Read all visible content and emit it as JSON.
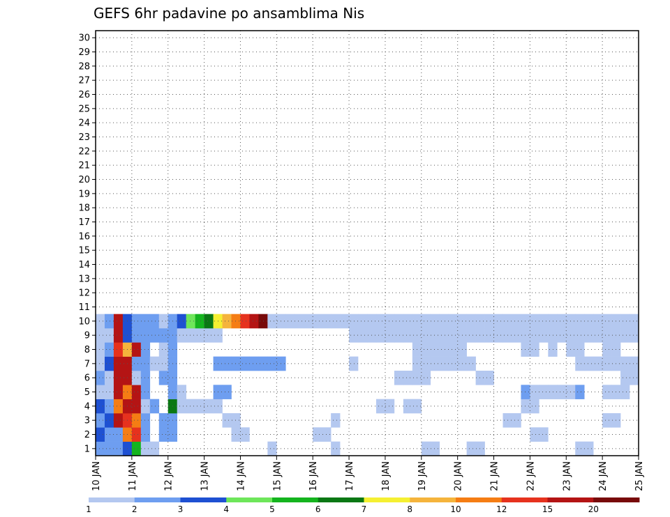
{
  "chart_data": {
    "type": "heatmap",
    "title": "GEFS 6hr padavine po ansamblima Nis",
    "xlabel": "",
    "ylabel": "",
    "x_unit": "6hr step",
    "x_ticks": [
      "10 JAN",
      "11 JAN",
      "12 JAN",
      "13 JAN",
      "14 JAN",
      "15 JAN",
      "16 JAN",
      "17 JAN",
      "18 JAN",
      "19 JAN",
      "20 JAN",
      "21 JAN",
      "22 JAN",
      "23 JAN",
      "24 JAN",
      "25 JAN"
    ],
    "y_ticks": [
      "1",
      "2",
      "3",
      "4",
      "5",
      "6",
      "7",
      "8",
      "9",
      "10",
      "11",
      "12",
      "13",
      "14",
      "15",
      "16",
      "17",
      "18",
      "19",
      "20",
      "21",
      "22",
      "23",
      "24",
      "25",
      "26",
      "27",
      "28",
      "29",
      "30"
    ],
    "grid": true,
    "colorbar": {
      "levels": [
        "1",
        "2",
        "3",
        "4",
        "5",
        "6",
        "7",
        "8",
        "10",
        "12",
        "15",
        "20"
      ],
      "colors": [
        "#b4c8f0",
        "#6e9ef0",
        "#1e50d2",
        "#6ee65a",
        "#14b41e",
        "#0a7814",
        "#f5f032",
        "#f5b43c",
        "#f57d14",
        "#e6321e",
        "#b41414",
        "#780a0a"
      ]
    },
    "cells": [
      [
        0,
        0,
        2
      ],
      [
        1,
        0,
        2
      ],
      [
        2,
        0,
        2
      ],
      [
        3,
        0,
        3
      ],
      [
        4,
        0,
        5
      ],
      [
        5,
        0,
        1
      ],
      [
        6,
        0,
        1
      ],
      [
        19,
        0,
        1
      ],
      [
        26,
        0,
        1
      ],
      [
        36,
        0,
        1
      ],
      [
        37,
        0,
        1
      ],
      [
        41,
        0,
        1
      ],
      [
        42,
        0,
        1
      ],
      [
        53,
        0,
        1
      ],
      [
        54,
        0,
        1
      ],
      [
        0,
        1,
        3
      ],
      [
        1,
        1,
        2
      ],
      [
        2,
        1,
        2
      ],
      [
        3,
        1,
        9
      ],
      [
        4,
        1,
        10
      ],
      [
        5,
        1,
        2
      ],
      [
        7,
        1,
        2
      ],
      [
        8,
        1,
        2
      ],
      [
        15,
        1,
        1
      ],
      [
        16,
        1,
        1
      ],
      [
        24,
        1,
        1
      ],
      [
        25,
        1,
        1
      ],
      [
        48,
        1,
        1
      ],
      [
        49,
        1,
        1
      ],
      [
        0,
        2,
        2
      ],
      [
        1,
        2,
        3
      ],
      [
        2,
        2,
        11
      ],
      [
        3,
        2,
        10
      ],
      [
        4,
        2,
        9
      ],
      [
        5,
        2,
        2
      ],
      [
        7,
        2,
        2
      ],
      [
        8,
        2,
        2
      ],
      [
        14,
        2,
        1
      ],
      [
        15,
        2,
        1
      ],
      [
        26,
        2,
        1
      ],
      [
        45,
        2,
        1
      ],
      [
        46,
        2,
        1
      ],
      [
        56,
        2,
        1
      ],
      [
        57,
        2,
        1
      ],
      [
        0,
        3,
        3
      ],
      [
        1,
        3,
        2
      ],
      [
        2,
        3,
        9
      ],
      [
        3,
        3,
        11
      ],
      [
        4,
        3,
        11
      ],
      [
        5,
        3,
        1
      ],
      [
        6,
        3,
        2
      ],
      [
        8,
        3,
        6
      ],
      [
        9,
        3,
        1
      ],
      [
        10,
        3,
        1
      ],
      [
        11,
        3,
        1
      ],
      [
        12,
        3,
        1
      ],
      [
        13,
        3,
        1
      ],
      [
        31,
        3,
        1
      ],
      [
        32,
        3,
        1
      ],
      [
        34,
        3,
        1
      ],
      [
        35,
        3,
        1
      ],
      [
        47,
        3,
        1
      ],
      [
        48,
        3,
        1
      ],
      [
        0,
        4,
        1
      ],
      [
        1,
        4,
        1
      ],
      [
        2,
        4,
        11
      ],
      [
        3,
        4,
        9
      ],
      [
        4,
        4,
        11
      ],
      [
        5,
        4,
        2
      ],
      [
        8,
        4,
        2
      ],
      [
        9,
        4,
        1
      ],
      [
        13,
        4,
        2
      ],
      [
        14,
        4,
        2
      ],
      [
        47,
        4,
        2
      ],
      [
        48,
        4,
        1
      ],
      [
        49,
        4,
        1
      ],
      [
        50,
        4,
        1
      ],
      [
        51,
        4,
        1
      ],
      [
        52,
        4,
        1
      ],
      [
        53,
        4,
        2
      ],
      [
        56,
        4,
        1
      ],
      [
        57,
        4,
        1
      ],
      [
        58,
        4,
        1
      ],
      [
        0,
        5,
        2
      ],
      [
        1,
        5,
        1
      ],
      [
        2,
        5,
        11
      ],
      [
        3,
        5,
        11
      ],
      [
        4,
        5,
        1
      ],
      [
        5,
        5,
        2
      ],
      [
        7,
        5,
        2
      ],
      [
        8,
        5,
        2
      ],
      [
        33,
        5,
        1
      ],
      [
        34,
        5,
        1
      ],
      [
        35,
        5,
        1
      ],
      [
        36,
        5,
        1
      ],
      [
        42,
        5,
        1
      ],
      [
        43,
        5,
        1
      ],
      [
        58,
        5,
        1
      ],
      [
        59,
        5,
        1
      ],
      [
        0,
        6,
        1
      ],
      [
        1,
        6,
        3
      ],
      [
        2,
        6,
        11
      ],
      [
        3,
        6,
        11
      ],
      [
        4,
        6,
        2
      ],
      [
        5,
        6,
        2
      ],
      [
        6,
        6,
        1
      ],
      [
        7,
        6,
        1
      ],
      [
        8,
        6,
        2
      ],
      [
        13,
        6,
        2
      ],
      [
        14,
        6,
        2
      ],
      [
        15,
        6,
        2
      ],
      [
        16,
        6,
        2
      ],
      [
        17,
        6,
        2
      ],
      [
        18,
        6,
        2
      ],
      [
        19,
        6,
        2
      ],
      [
        20,
        6,
        2
      ],
      [
        28,
        6,
        1
      ],
      [
        35,
        6,
        1
      ],
      [
        36,
        6,
        1
      ],
      [
        37,
        6,
        1
      ],
      [
        38,
        6,
        1
      ],
      [
        39,
        6,
        1
      ],
      [
        40,
        6,
        1
      ],
      [
        41,
        6,
        1
      ],
      [
        53,
        6,
        1
      ],
      [
        54,
        6,
        1
      ],
      [
        55,
        6,
        1
      ],
      [
        56,
        6,
        1
      ],
      [
        57,
        6,
        1
      ],
      [
        58,
        6,
        1
      ],
      [
        59,
        6,
        1
      ],
      [
        0,
        7,
        1
      ],
      [
        1,
        7,
        2
      ],
      [
        2,
        7,
        10
      ],
      [
        3,
        7,
        8
      ],
      [
        4,
        7,
        11
      ],
      [
        5,
        7,
        2
      ],
      [
        7,
        7,
        1
      ],
      [
        8,
        7,
        2
      ],
      [
        35,
        7,
        1
      ],
      [
        36,
        7,
        1
      ],
      [
        37,
        7,
        1
      ],
      [
        38,
        7,
        1
      ],
      [
        39,
        7,
        1
      ],
      [
        40,
        7,
        1
      ],
      [
        47,
        7,
        1
      ],
      [
        48,
        7,
        1
      ],
      [
        50,
        7,
        1
      ],
      [
        52,
        7,
        1
      ],
      [
        53,
        7,
        1
      ],
      [
        56,
        7,
        1
      ],
      [
        57,
        7,
        1
      ],
      [
        0,
        8,
        1
      ],
      [
        1,
        8,
        1
      ],
      [
        2,
        8,
        11
      ],
      [
        3,
        8,
        3
      ],
      [
        4,
        8,
        2
      ],
      [
        5,
        8,
        2
      ],
      [
        6,
        8,
        2
      ],
      [
        7,
        8,
        2
      ],
      [
        8,
        8,
        2
      ],
      [
        9,
        8,
        1
      ],
      [
        10,
        8,
        1
      ],
      [
        11,
        8,
        1
      ],
      [
        12,
        8,
        1
      ],
      [
        13,
        8,
        1
      ],
      [
        28,
        8,
        1
      ],
      [
        29,
        8,
        1
      ],
      [
        30,
        8,
        1
      ],
      [
        31,
        8,
        1
      ],
      [
        32,
        8,
        1
      ],
      [
        33,
        8,
        1
      ],
      [
        34,
        8,
        1
      ],
      [
        35,
        8,
        1
      ],
      [
        36,
        8,
        1
      ],
      [
        37,
        8,
        1
      ],
      [
        38,
        8,
        1
      ],
      [
        39,
        8,
        1
      ],
      [
        40,
        8,
        1
      ],
      [
        41,
        8,
        1
      ],
      [
        42,
        8,
        1
      ],
      [
        43,
        8,
        1
      ],
      [
        44,
        8,
        1
      ],
      [
        45,
        8,
        1
      ],
      [
        46,
        8,
        1
      ],
      [
        47,
        8,
        1
      ],
      [
        48,
        8,
        1
      ],
      [
        49,
        8,
        1
      ],
      [
        50,
        8,
        1
      ],
      [
        51,
        8,
        1
      ],
      [
        52,
        8,
        1
      ],
      [
        53,
        8,
        1
      ],
      [
        54,
        8,
        1
      ],
      [
        55,
        8,
        1
      ],
      [
        56,
        8,
        1
      ],
      [
        57,
        8,
        1
      ],
      [
        58,
        8,
        1
      ],
      [
        59,
        8,
        1
      ],
      [
        0,
        9,
        1
      ],
      [
        1,
        9,
        2
      ],
      [
        2,
        9,
        11
      ],
      [
        3,
        9,
        3
      ],
      [
        4,
        9,
        2
      ],
      [
        5,
        9,
        2
      ],
      [
        6,
        9,
        2
      ],
      [
        7,
        9,
        1
      ],
      [
        8,
        9,
        2
      ],
      [
        9,
        9,
        3
      ],
      [
        10,
        9,
        4
      ],
      [
        11,
        9,
        5
      ],
      [
        12,
        9,
        6
      ],
      [
        13,
        9,
        7
      ],
      [
        14,
        9,
        8
      ],
      [
        15,
        9,
        9
      ],
      [
        16,
        9,
        10
      ],
      [
        17,
        9,
        11
      ],
      [
        18,
        9,
        12
      ],
      [
        19,
        9,
        1
      ],
      [
        20,
        9,
        1
      ],
      [
        21,
        9,
        1
      ],
      [
        22,
        9,
        1
      ],
      [
        23,
        9,
        1
      ],
      [
        24,
        9,
        1
      ],
      [
        25,
        9,
        1
      ],
      [
        26,
        9,
        1
      ],
      [
        27,
        9,
        1
      ],
      [
        28,
        9,
        1
      ],
      [
        29,
        9,
        1
      ],
      [
        30,
        9,
        1
      ],
      [
        31,
        9,
        1
      ],
      [
        32,
        9,
        1
      ],
      [
        33,
        9,
        1
      ],
      [
        34,
        9,
        1
      ],
      [
        35,
        9,
        1
      ],
      [
        36,
        9,
        1
      ],
      [
        37,
        9,
        1
      ],
      [
        38,
        9,
        1
      ],
      [
        39,
        9,
        1
      ],
      [
        40,
        9,
        1
      ],
      [
        41,
        9,
        1
      ],
      [
        42,
        9,
        1
      ],
      [
        43,
        9,
        1
      ],
      [
        44,
        9,
        1
      ],
      [
        45,
        9,
        1
      ],
      [
        46,
        9,
        1
      ],
      [
        47,
        9,
        1
      ],
      [
        48,
        9,
        1
      ],
      [
        49,
        9,
        1
      ],
      [
        50,
        9,
        1
      ],
      [
        51,
        9,
        1
      ],
      [
        52,
        9,
        1
      ],
      [
        53,
        9,
        1
      ],
      [
        54,
        9,
        1
      ],
      [
        55,
        9,
        1
      ],
      [
        56,
        9,
        1
      ],
      [
        57,
        9,
        1
      ],
      [
        58,
        9,
        1
      ],
      [
        59,
        9,
        1
      ]
    ]
  }
}
